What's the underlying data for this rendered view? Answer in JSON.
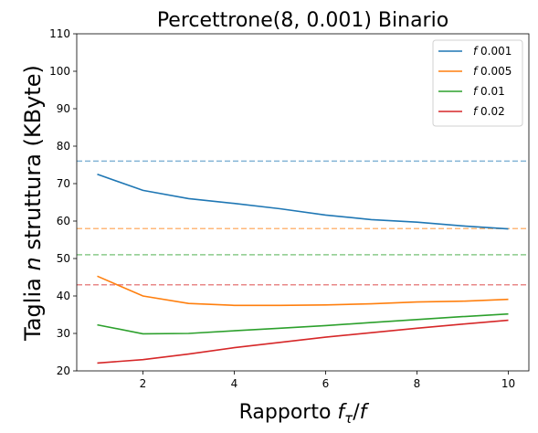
{
  "chart_data": {
    "type": "line",
    "title": "Percettrone(8, 0.001) Binario",
    "xlabel": "Rapporto fτ/f",
    "ylabel": "Taglia n struttura (KByte)",
    "xlim": [
      0.55,
      10.45
    ],
    "ylim": [
      20,
      110
    ],
    "xticks": [
      2,
      4,
      6,
      8,
      10
    ],
    "yticks": [
      20,
      30,
      40,
      50,
      60,
      70,
      80,
      90,
      100,
      110
    ],
    "grid": false,
    "legend_position": "top-right",
    "x": [
      1,
      2,
      3,
      4,
      5,
      6,
      7,
      8,
      9,
      10
    ],
    "series": [
      {
        "name": "f 0.001",
        "color": "#1f77b4",
        "values": [
          72.5,
          68.2,
          66.0,
          64.7,
          63.3,
          61.6,
          60.4,
          59.7,
          58.7,
          57.9
        ]
      },
      {
        "name": "f 0.005",
        "color": "#ff7f0e",
        "values": [
          45.3,
          40.0,
          38.0,
          37.5,
          37.5,
          37.6,
          37.9,
          38.4,
          38.6,
          39.1
        ]
      },
      {
        "name": "f 0.01",
        "color": "#2ca02c",
        "values": [
          32.3,
          29.9,
          30.0,
          30.7,
          31.4,
          32.1,
          32.9,
          33.7,
          34.5,
          35.2
        ]
      },
      {
        "name": "f 0.02",
        "color": "#d62728",
        "values": [
          22.1,
          23.0,
          24.5,
          26.2,
          27.6,
          29.0,
          30.2,
          31.4,
          32.5,
          33.5
        ]
      }
    ],
    "reference_lines": [
      {
        "value": 76,
        "color": "#1f77b4"
      },
      {
        "value": 58,
        "color": "#ff7f0e"
      },
      {
        "value": 51,
        "color": "#2ca02c"
      },
      {
        "value": 43,
        "color": "#d62728"
      }
    ]
  }
}
